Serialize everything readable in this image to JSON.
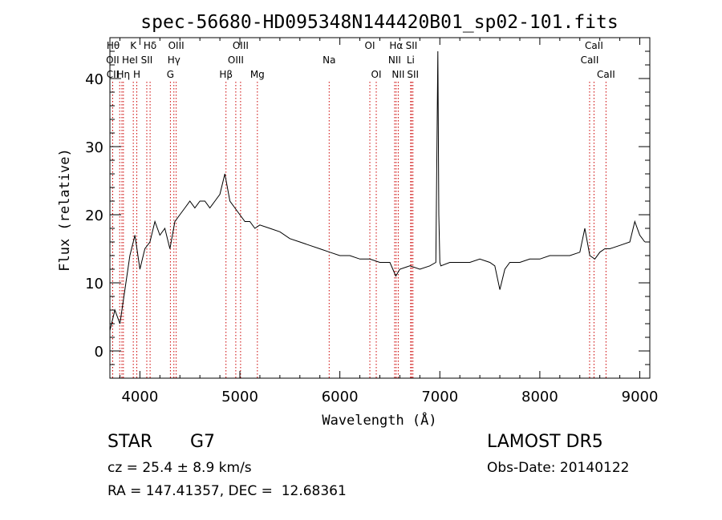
{
  "chart_data": {
    "type": "line",
    "title": "spec-56680-HD095348N144420B01_sp02-101.fits",
    "xlabel": "Wavelength (Å)",
    "ylabel": "Flux (relative)",
    "xlim": [
      3700,
      9100
    ],
    "ylim": [
      -4,
      46
    ],
    "xticks": [
      4000,
      5000,
      6000,
      7000,
      8000,
      9000
    ],
    "yticks": [
      0,
      10,
      20,
      30,
      40
    ],
    "line_color": "#000000",
    "marker_color": "#cc0000",
    "series": [
      {
        "x": [
          3700,
          3750,
          3800,
          3850,
          3900,
          3950,
          4000,
          4050,
          4100,
          4150,
          4200,
          4250,
          4300,
          4350,
          4400,
          4450,
          4500,
          4550,
          4600,
          4650,
          4700,
          4750,
          4800,
          4850,
          4900,
          4950,
          5000,
          5050,
          5100,
          5150,
          5200,
          5300,
          5400,
          5500,
          5600,
          5700,
          5800,
          5900,
          6000,
          6100,
          6200,
          6300,
          6400,
          6500,
          6560,
          6600,
          6700,
          6800,
          6900,
          6960,
          6980,
          6990,
          7000,
          7010,
          7100,
          7200,
          7300,
          7400,
          7500,
          7550,
          7600,
          7650,
          7700,
          7800,
          7900,
          8000,
          8100,
          8200,
          8300,
          8400,
          8450,
          8500,
          8550,
          8600,
          8650,
          8700,
          8800,
          8900,
          8950,
          9000,
          9050
        ],
        "values": [
          3,
          6,
          4,
          9,
          14,
          17,
          12,
          15,
          16,
          19,
          17,
          18,
          15,
          19,
          20,
          21,
          22,
          21,
          22,
          22,
          21,
          22,
          23,
          26,
          22,
          21,
          20,
          19,
          19,
          18,
          18.5,
          18,
          17.5,
          16.5,
          16,
          15.5,
          15,
          14.5,
          14,
          14,
          13.5,
          13.5,
          13,
          13,
          11,
          12,
          12.5,
          12,
          12.5,
          13,
          44,
          20,
          13,
          12.5,
          13,
          13,
          13,
          13.5,
          13,
          12.5,
          9,
          12,
          13,
          13,
          13.5,
          13.5,
          14,
          14,
          14,
          14.5,
          18,
          14,
          13.5,
          14.5,
          15,
          15,
          15.5,
          16,
          19,
          17,
          16
        ]
      }
    ],
    "line_markers": [
      {
        "label": "Hθ",
        "wl": 3798,
        "row": 0,
        "align": "end"
      },
      {
        "label": "OII",
        "wl": 3727,
        "row": 1,
        "align": "middle"
      },
      {
        "label": "CII",
        "wl": 3728,
        "row": 2,
        "align": "middle"
      },
      {
        "label": "HeI",
        "wl": 3820,
        "row": 1,
        "align": "start"
      },
      {
        "label": "Hη",
        "wl": 3835,
        "row": 2,
        "align": "middle"
      },
      {
        "label": "K",
        "wl": 3934,
        "row": 0,
        "align": "middle"
      },
      {
        "label": "H",
        "wl": 3969,
        "row": 2,
        "align": "middle"
      },
      {
        "label": "Hδ",
        "wl": 4102,
        "row": 0,
        "align": "middle"
      },
      {
        "label": "SII",
        "wl": 4069,
        "row": 1,
        "align": "middle"
      },
      {
        "label": "OIII",
        "wl": 4363,
        "row": 0,
        "align": "middle"
      },
      {
        "label": "Hγ",
        "wl": 4340,
        "row": 1,
        "align": "middle"
      },
      {
        "label": "G",
        "wl": 4305,
        "row": 2,
        "align": "middle"
      },
      {
        "label": "Hβ",
        "wl": 4861,
        "row": 2,
        "align": "middle"
      },
      {
        "label": "OIII",
        "wl": 5007,
        "row": 0,
        "align": "middle"
      },
      {
        "label": "OIII",
        "wl": 4959,
        "row": 1,
        "align": "middle"
      },
      {
        "label": "Mg",
        "wl": 5175,
        "row": 2,
        "align": "middle"
      },
      {
        "label": "Na",
        "wl": 5893,
        "row": 1,
        "align": "middle"
      },
      {
        "label": "OI",
        "wl": 6300,
        "row": 0,
        "align": "middle"
      },
      {
        "label": "OI",
        "wl": 6364,
        "row": 2,
        "align": "middle"
      },
      {
        "label": "Hα",
        "wl": 6563,
        "row": 0,
        "align": "middle"
      },
      {
        "label": "NII",
        "wl": 6548,
        "row": 1,
        "align": "middle"
      },
      {
        "label": "NII",
        "wl": 6584,
        "row": 2,
        "align": "middle"
      },
      {
        "label": "SII",
        "wl": 6717,
        "row": 0,
        "align": "middle"
      },
      {
        "label": "Li",
        "wl": 6708,
        "row": 1,
        "align": "middle"
      },
      {
        "label": "SII",
        "wl": 6731,
        "row": 2,
        "align": "middle"
      },
      {
        "label": "CaII",
        "wl": 8542,
        "row": 0,
        "align": "middle"
      },
      {
        "label": "CaII",
        "wl": 8498,
        "row": 1,
        "align": "middle"
      },
      {
        "label": "CaII",
        "wl": 8662,
        "row": 2,
        "align": "middle"
      }
    ]
  },
  "info": {
    "object_type": "STAR",
    "subclass": "G7",
    "cz": "cz = 25.4 ± 8.9 km/s",
    "coords": "RA = 147.41357, DEC =  12.68361",
    "survey": "LAMOST DR5",
    "obs_date": "Obs-Date: 20140122"
  }
}
